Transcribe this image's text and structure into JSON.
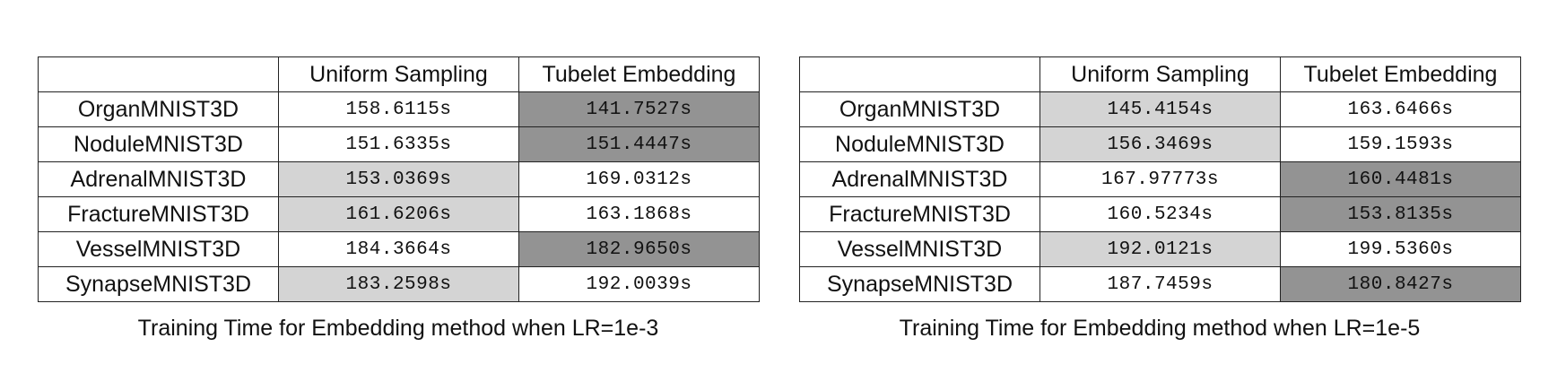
{
  "tables": [
    {
      "caption": "Training Time for Embedding method when LR=1e-3",
      "headers": [
        "",
        "Uniform Sampling",
        "Tubelet Embedding"
      ],
      "rows": [
        {
          "name": "OrganMNIST3D",
          "uniform": "158.6115s",
          "tubelet": "141.7527s",
          "shade_uniform": "",
          "shade_tubelet": "dark"
        },
        {
          "name": "NoduleMNIST3D",
          "uniform": "151.6335s",
          "tubelet": "151.4447s",
          "shade_uniform": "",
          "shade_tubelet": "dark"
        },
        {
          "name": "AdrenalMNIST3D",
          "uniform": "153.0369s",
          "tubelet": "169.0312s",
          "shade_uniform": "light",
          "shade_tubelet": ""
        },
        {
          "name": "FractureMNIST3D",
          "uniform": "161.6206s",
          "tubelet": "163.1868s",
          "shade_uniform": "light",
          "shade_tubelet": ""
        },
        {
          "name": "VesselMNIST3D",
          "uniform": "184.3664s",
          "tubelet": "182.9650s",
          "shade_uniform": "",
          "shade_tubelet": "dark"
        },
        {
          "name": "SynapseMNIST3D",
          "uniform": "183.2598s",
          "tubelet": "192.0039s",
          "shade_uniform": "light",
          "shade_tubelet": ""
        }
      ]
    },
    {
      "caption": "Training Time for Embedding method when LR=1e-5",
      "headers": [
        "",
        "Uniform Sampling",
        "Tubelet Embedding"
      ],
      "rows": [
        {
          "name": "OrganMNIST3D",
          "uniform": "145.4154s",
          "tubelet": "163.6466s",
          "shade_uniform": "light",
          "shade_tubelet": ""
        },
        {
          "name": "NoduleMNIST3D",
          "uniform": "156.3469s",
          "tubelet": "159.1593s",
          "shade_uniform": "light",
          "shade_tubelet": ""
        },
        {
          "name": "AdrenalMNIST3D",
          "uniform": "167.97773s",
          "tubelet": "160.4481s",
          "shade_uniform": "",
          "shade_tubelet": "dark"
        },
        {
          "name": "FractureMNIST3D",
          "uniform": "160.5234s",
          "tubelet": "153.8135s",
          "shade_uniform": "",
          "shade_tubelet": "dark"
        },
        {
          "name": "VesselMNIST3D",
          "uniform": "192.0121s",
          "tubelet": "199.5360s",
          "shade_uniform": "light",
          "shade_tubelet": ""
        },
        {
          "name": "SynapseMNIST3D",
          "uniform": "187.7459s",
          "tubelet": "180.8427s",
          "shade_uniform": "",
          "shade_tubelet": "dark"
        }
      ]
    }
  ],
  "colors": {
    "light": "#d4d4d4",
    "dark": "#939393",
    "border": "#222222"
  }
}
